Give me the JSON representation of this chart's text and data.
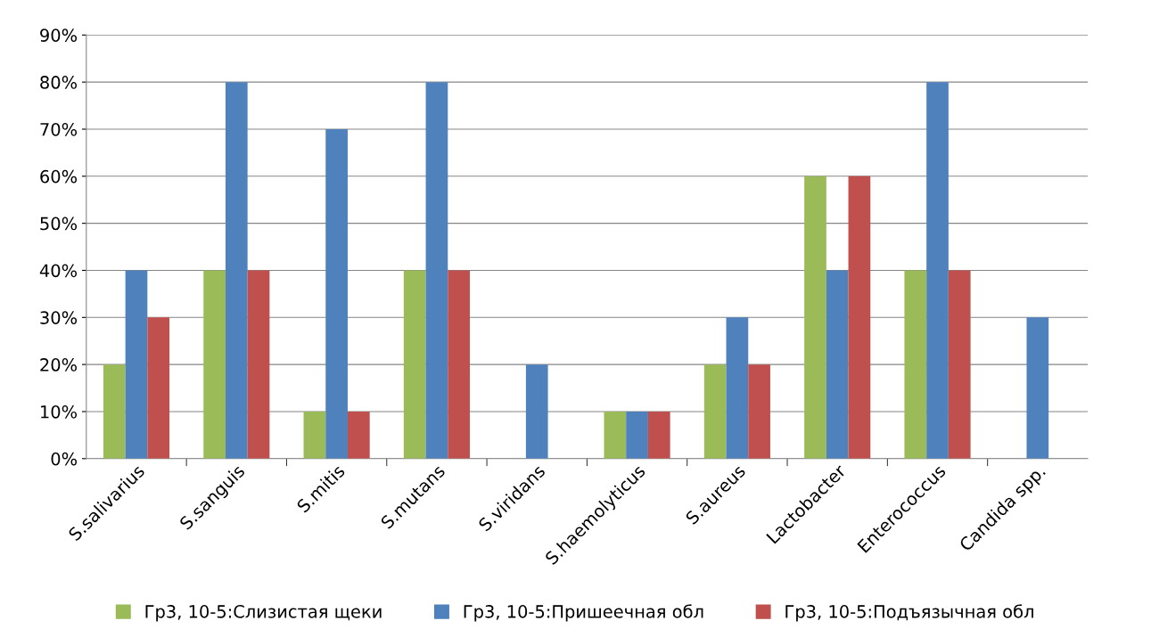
{
  "chart_data": {
    "type": "bar",
    "categories": [
      "S.salivarius",
      "S.sanguis",
      "S.mitis",
      "S.mutans",
      "S.viridans",
      "S.haemolyticus",
      "S.aureus",
      "Lactobacter",
      "Enterococcus",
      "Candida spp."
    ],
    "series": [
      {
        "name": "Гр3, 10-5:Слизистая щеки",
        "color": "#9bbb59",
        "values": [
          20,
          40,
          10,
          40,
          0,
          10,
          20,
          60,
          40,
          0
        ]
      },
      {
        "name": "Гр3, 10-5:Пришеечная обл",
        "color": "#4f81bd",
        "values": [
          40,
          80,
          70,
          80,
          20,
          10,
          30,
          40,
          80,
          30
        ]
      },
      {
        "name": "Гр3, 10-5:Подъязычная обл",
        "color": "#c0504d",
        "values": [
          30,
          40,
          10,
          40,
          0,
          10,
          20,
          60,
          40,
          0
        ]
      }
    ],
    "ylim": [
      0,
      90
    ],
    "yticks": [
      {
        "value": 0,
        "label": "0%"
      },
      {
        "value": 10,
        "label": "10%"
      },
      {
        "value": 20,
        "label": "20%"
      },
      {
        "value": 30,
        "label": "30%"
      },
      {
        "value": 40,
        "label": "40%"
      },
      {
        "value": 50,
        "label": "50%"
      },
      {
        "value": 60,
        "label": "60%"
      },
      {
        "value": 70,
        "label": "70%"
      },
      {
        "value": 80,
        "label": "80%"
      },
      {
        "value": 90,
        "label": "90%"
      }
    ],
    "grid": "y",
    "legend": "bottom"
  }
}
